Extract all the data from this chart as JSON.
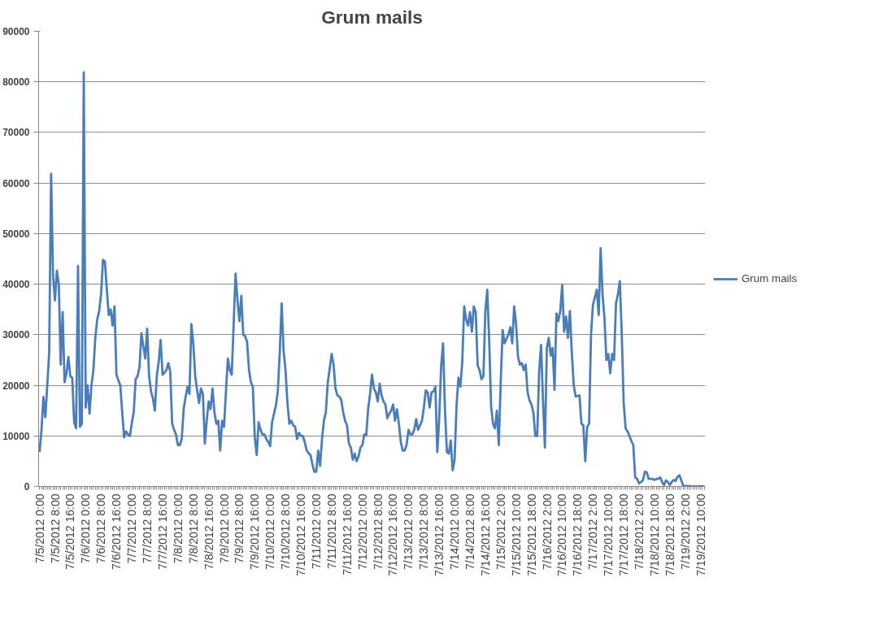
{
  "chart_data": {
    "type": "line",
    "title": "Grum mails",
    "categories": [
      "7/5/2012 0:00",
      null,
      null,
      null,
      null,
      null,
      null,
      null,
      "7/5/2012 8:00",
      null,
      null,
      null,
      null,
      null,
      null,
      null,
      "7/5/2012 16:00",
      null,
      null,
      null,
      null,
      null,
      null,
      null,
      "7/6/2012 0:00",
      null,
      null,
      null,
      null,
      null,
      null,
      null,
      "7/6/2012 8:00",
      null,
      null,
      null,
      null,
      null,
      null,
      null,
      "7/6/2012 16:00",
      null,
      null,
      null,
      null,
      null,
      null,
      null,
      "7/7/2012 0:00",
      null,
      null,
      null,
      null,
      null,
      null,
      null,
      "7/7/2012 8:00",
      null,
      null,
      null,
      null,
      null,
      null,
      null,
      "7/7/2012 16:00",
      null,
      null,
      null,
      null,
      null,
      null,
      null,
      "7/8/2012 0:00",
      null,
      null,
      null,
      null,
      null,
      null,
      null,
      "7/8/2012 8:00",
      null,
      null,
      null,
      null,
      null,
      null,
      null,
      "7/8/2012 16:00",
      null,
      null,
      null,
      null,
      null,
      null,
      null,
      "7/9/2012 0:00",
      null,
      null,
      null,
      null,
      null,
      null,
      null,
      "7/9/2012 8:00",
      null,
      null,
      null,
      null,
      null,
      null,
      null,
      "7/9/2012 16:00",
      null,
      null,
      null,
      null,
      null,
      null,
      null,
      "7/10/2012 0:00",
      null,
      null,
      null,
      null,
      null,
      null,
      null,
      "7/10/2012 8:00",
      null,
      null,
      null,
      null,
      null,
      null,
      null,
      "7/10/2012 16:00",
      null,
      null,
      null,
      null,
      null,
      null,
      null,
      "7/11/2012 0:00",
      null,
      null,
      null,
      null,
      null,
      null,
      null,
      "7/11/2012 8:00",
      null,
      null,
      null,
      null,
      null,
      null,
      null,
      "7/11/2012 16:00",
      null,
      null,
      null,
      null,
      null,
      null,
      null,
      "7/12/2012 0:00",
      null,
      null,
      null,
      null,
      null,
      null,
      null,
      "7/12/2012 8:00",
      null,
      null,
      null,
      null,
      null,
      null,
      null,
      "7/12/2012 16:00",
      null,
      null,
      null,
      null,
      null,
      null,
      null,
      "7/13/2012 0:00",
      null,
      null,
      null,
      null,
      null,
      null,
      null,
      "7/13/2012 8:00",
      null,
      null,
      null,
      null,
      null,
      null,
      null,
      "7/13/2012 16:00",
      null,
      null,
      null,
      null,
      null,
      null,
      null,
      "7/14/2012 0:00",
      null,
      null,
      null,
      null,
      null,
      null,
      null,
      "7/14/2012 8:00",
      null,
      null,
      null,
      null,
      null,
      null,
      null,
      "7/14/2012 16:00",
      null,
      null,
      null,
      null,
      null,
      null,
      null,
      "7/15/2012 2:00",
      null,
      null,
      null,
      null,
      null,
      null,
      null,
      "7/15/2012 10:00",
      null,
      null,
      null,
      null,
      null,
      null,
      null,
      "7/15/2012 18:00",
      null,
      null,
      null,
      null,
      null,
      null,
      null,
      "7/16/2012 2:00",
      null,
      null,
      null,
      null,
      null,
      null,
      null,
      "7/16/2012 10:00",
      null,
      null,
      null,
      null,
      null,
      null,
      null,
      "7/16/2012 18:00",
      null,
      null,
      null,
      null,
      null,
      null,
      null,
      "7/17/2012 2:00",
      null,
      null,
      null,
      null,
      null,
      null,
      null,
      "7/17/2012 10:00",
      null,
      null,
      null,
      null,
      null,
      null,
      null,
      "7/17/2012 18:00",
      null,
      null,
      null,
      null,
      null,
      null,
      null,
      "7/18/2012 2:00",
      null,
      null,
      null,
      null,
      null,
      null,
      null,
      "7/18/2012 10:00",
      null,
      null,
      null,
      null,
      null,
      null,
      null,
      "7/18/2012 18:00",
      null,
      null,
      null,
      null,
      null,
      null,
      null,
      "7/19/2012 2:00",
      null,
      null,
      null,
      null,
      null,
      null,
      null,
      "7/19/2012 10:00",
      null,
      null
    ],
    "series": [
      {
        "name": "Grum mails",
        "color": "#4a7ebb",
        "values": [
          6800,
          11200,
          17700,
          13700,
          20000,
          26500,
          61800,
          41800,
          36800,
          42700,
          40000,
          24100,
          34500,
          20600,
          22400,
          25600,
          21800,
          21500,
          12700,
          11500,
          43600,
          11800,
          12400,
          81900,
          15600,
          20000,
          14400,
          20000,
          23000,
          29400,
          33000,
          34700,
          38000,
          44800,
          44500,
          38900,
          33900,
          35000,
          31800,
          35600,
          22100,
          21000,
          20000,
          14700,
          9700,
          10900,
          10300,
          10000,
          12500,
          14700,
          21200,
          21800,
          23600,
          30300,
          27700,
          25300,
          31200,
          21800,
          18800,
          17400,
          15000,
          21800,
          24700,
          29000,
          22100,
          22500,
          23000,
          24400,
          22700,
          12400,
          11200,
          10300,
          8200,
          8200,
          9400,
          15300,
          17700,
          19700,
          18300,
          32100,
          28300,
          21800,
          19000,
          16500,
          19400,
          18300,
          8500,
          13000,
          16800,
          15300,
          19400,
          14700,
          12400,
          13000,
          7100,
          13000,
          11800,
          18800,
          25300,
          23000,
          22100,
          32000,
          42100,
          36800,
          32700,
          37700,
          30000,
          29700,
          28600,
          23000,
          20600,
          19700,
          9700,
          6200,
          12700,
          11200,
          10300,
          10300,
          9400,
          8800,
          8000,
          12700,
          14400,
          16000,
          18800,
          26500,
          36200,
          26800,
          23000,
          16500,
          12400,
          13000,
          12100,
          11800,
          9400,
          10600,
          10000,
          10000,
          8800,
          7100,
          6600,
          6200,
          4400,
          2900,
          2900,
          7100,
          4100,
          9400,
          13000,
          14700,
          20600,
          23300,
          26200,
          24100,
          19400,
          18000,
          17800,
          17100,
          14700,
          13000,
          12100,
          8500,
          7700,
          5300,
          6500,
          5000,
          5900,
          7700,
          8200,
          10300,
          10100,
          15300,
          18300,
          22100,
          19400,
          18600,
          16800,
          20300,
          18000,
          16800,
          16200,
          13500,
          14400,
          15000,
          16200,
          13000,
          15300,
          12400,
          8800,
          7100,
          7100,
          8200,
          11200,
          10300,
          10300,
          11200,
          13300,
          11200,
          12100,
          13000,
          15600,
          19000,
          18600,
          15600,
          18600,
          18800,
          19700,
          6800,
          13500,
          23900,
          28300,
          15000,
          6800,
          6500,
          9100,
          3200,
          5300,
          15900,
          21500,
          19700,
          24700,
          35600,
          33000,
          31800,
          34500,
          30600,
          35600,
          34500,
          23900,
          23000,
          21200,
          21800,
          34700,
          38900,
          28900,
          15900,
          12400,
          11500,
          15000,
          8200,
          20600,
          30900,
          28300,
          29200,
          30000,
          31500,
          28300,
          35600,
          32100,
          25600,
          24100,
          24400,
          23000,
          24100,
          18600,
          17000,
          16200,
          14700,
          10000,
          10000,
          22700,
          28000,
          17000,
          7700,
          27400,
          29400,
          25900,
          27400,
          19100,
          34200,
          32700,
          34700,
          39800,
          30600,
          33600,
          29400,
          34700,
          26500,
          20000,
          17800,
          17900,
          18000,
          12400,
          12100,
          5000,
          11800,
          12400,
          30000,
          35900,
          37400,
          38900,
          33900,
          47100,
          38000,
          33300,
          25000,
          26200,
          22400,
          26200,
          25000,
          36200,
          38000,
          40600,
          30000,
          16500,
          11500,
          10900,
          10000,
          9000,
          8200,
          1800,
          1500,
          600,
          900,
          1200,
          2900,
          2800,
          1500,
          1500,
          1500,
          1300,
          1500,
          1500,
          1800,
          900,
          300,
          1200,
          900,
          300,
          900,
          1300,
          1100,
          1900,
          2200,
          1200,
          100,
          100,
          100,
          100,
          0,
          0,
          0,
          0,
          0,
          0,
          0,
          0
        ]
      }
    ],
    "ylim": [
      0,
      90000
    ],
    "yticks": [
      0,
      10000,
      20000,
      30000,
      40000,
      50000,
      60000,
      70000,
      80000,
      90000
    ],
    "grid": "y",
    "legend": "right"
  }
}
